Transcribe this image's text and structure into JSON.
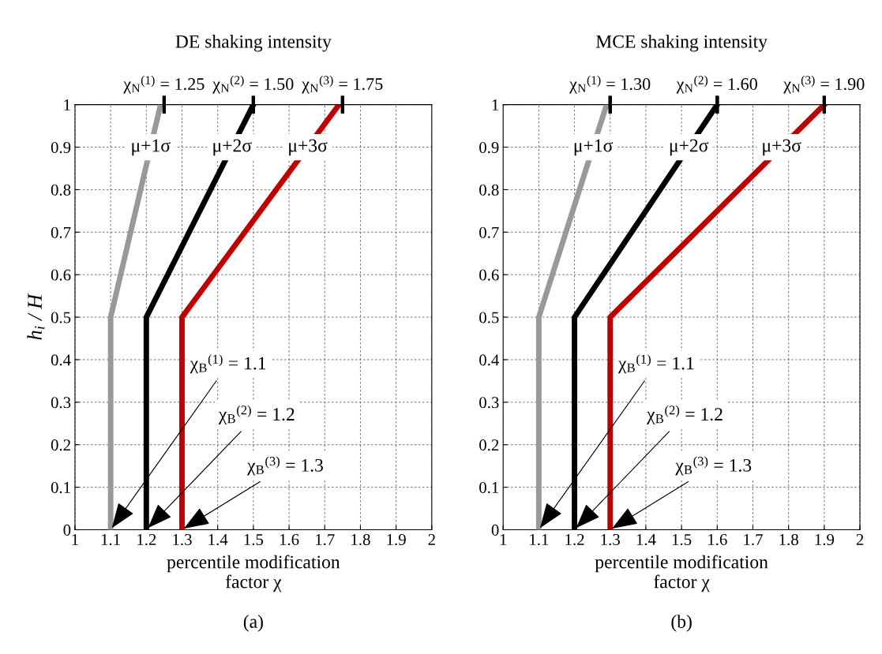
{
  "chart_data": [
    {
      "type": "line",
      "title": "DE shaking intensity",
      "xlabel": "percentile modification\nfactor χ",
      "ylabel": "h$_{i}$ / H",
      "xlim": [
        1,
        2
      ],
      "xticks": [
        1,
        1.1,
        1.2,
        1.3,
        1.4,
        1.5,
        1.6,
        1.7,
        1.8,
        1.9,
        2
      ],
      "ylim": [
        0,
        1
      ],
      "yticks": [
        0,
        0.1,
        0.2,
        0.3,
        0.4,
        0.5,
        0.6,
        0.7,
        0.8,
        0.9,
        1
      ],
      "grid": true,
      "series": [
        {
          "name": "μ+1σ",
          "color": "#999999",
          "x": [
            1.1,
            1.1,
            1.24
          ],
          "values": [
            0,
            0.5,
            1
          ]
        },
        {
          "name": "μ+2σ",
          "color": "#000000",
          "x": [
            1.2,
            1.2,
            1.5
          ],
          "values": [
            0,
            0.5,
            1
          ]
        },
        {
          "name": "μ+3σ",
          "color": "#c00000",
          "x": [
            1.3,
            1.3,
            1.74
          ],
          "values": [
            0,
            0.5,
            1
          ]
        }
      ],
      "annotations": [
        {
          "text": "χ$_{N}$$^{(1)}$ = 1.25",
          "x": 1.25,
          "y": 1
        },
        {
          "text": "χ$_{N}$$^{(2)}$ = 1.50",
          "x": 1.5,
          "y": 1
        },
        {
          "text": "χ$_{N}$$^{(3)}$ = 1.75",
          "x": 1.75,
          "y": 1
        },
        {
          "text": "χ$_{B}$$^{(1)}$ = 1.1",
          "x": 1.1,
          "y": 0
        },
        {
          "text": "χ$_{B}$$^{(2)}$ = 1.2",
          "x": 1.2,
          "y": 0
        },
        {
          "text": "χ$_{B}$$^{(3)}$ = 1.3",
          "x": 1.3,
          "y": 0
        },
        "(a)"
      ]
    },
    {
      "type": "line",
      "title": "MCE shaking intensity",
      "xlabel": "percentile modification\nfactor χ",
      "xlim": [
        1,
        2
      ],
      "xticks": [
        1,
        1.1,
        1.2,
        1.3,
        1.4,
        1.5,
        1.6,
        1.7,
        1.8,
        1.9,
        2
      ],
      "ylim": [
        0,
        1
      ],
      "yticks": [
        0,
        0.1,
        0.2,
        0.3,
        0.4,
        0.5,
        0.6,
        0.7,
        0.8,
        0.9,
        1
      ],
      "grid": true,
      "series": [
        {
          "name": "μ+1σ",
          "color": "#999999",
          "x": [
            1.1,
            1.1,
            1.29
          ],
          "values": [
            0,
            0.5,
            1
          ]
        },
        {
          "name": "μ+2σ",
          "color": "#000000",
          "x": [
            1.2,
            1.2,
            1.6
          ],
          "values": [
            0,
            0.5,
            1
          ]
        },
        {
          "name": "μ+3σ",
          "color": "#c00000",
          "x": [
            1.3,
            1.3,
            1.9
          ],
          "values": [
            0,
            0.5,
            1
          ]
        }
      ],
      "annotations": [
        {
          "text": "χ$_{N}$$^{(1)}$ = 1.30",
          "x": 1.3,
          "y": 1
        },
        {
          "text": "χ$_{N}$$^{(2)}$ = 1.60",
          "x": 1.6,
          "y": 1
        },
        {
          "text": "χ$_{N}$$^{(3)}$ = 1.90",
          "x": 1.9,
          "y": 1
        },
        {
          "text": "χ$_{B}$$^{(1)}$ = 1.1",
          "x": 1.1,
          "y": 0
        },
        {
          "text": "χ$_{B}$$^{(2)}$ = 1.2",
          "x": 1.2,
          "y": 0
        },
        {
          "text": "χ$_{B}$$^{(3)}$ = 1.3",
          "x": 1.3,
          "y": 0
        },
        "(b)"
      ]
    }
  ]
}
